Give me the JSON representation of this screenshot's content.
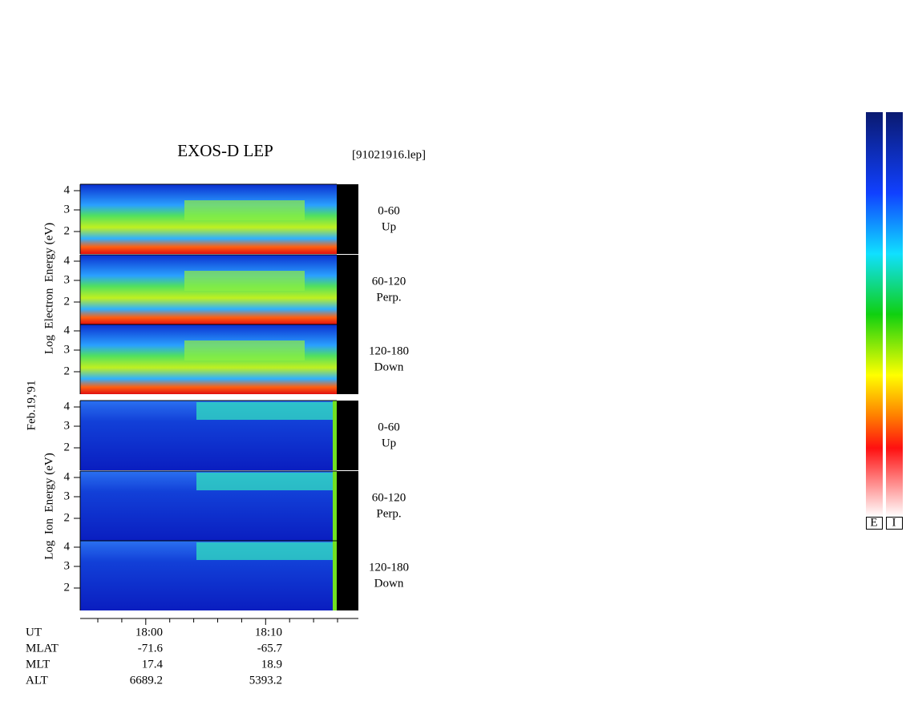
{
  "header": {
    "title": "EXOS-D LEP",
    "file": "[91021916.lep]"
  },
  "axis_labels": {
    "electron": "Log  Electron  Energy (eV)",
    "ion": "Log  Ion  Energy (eV)",
    "date": "Feb.19,'91"
  },
  "panels": [
    {
      "angle": "0-60",
      "direction": "Up",
      "yticks": [
        "4",
        "3",
        "2"
      ]
    },
    {
      "angle": "60-120",
      "direction": "Perp.",
      "yticks": [
        "4",
        "3",
        "2"
      ]
    },
    {
      "angle": "120-180",
      "direction": "Down",
      "yticks": [
        "4",
        "3",
        "2"
      ]
    },
    {
      "angle": "0-60",
      "direction": "Up",
      "yticks": [
        "4",
        "3",
        "2"
      ]
    },
    {
      "angle": "60-120",
      "direction": "Perp.",
      "yticks": [
        "4",
        "3",
        "2"
      ]
    },
    {
      "angle": "120-180",
      "direction": "Down",
      "yticks": [
        "4",
        "3",
        "2"
      ]
    }
  ],
  "footer": {
    "rows": [
      {
        "label": "UT",
        "values": [
          "18:00",
          "18:10"
        ]
      },
      {
        "label": "MLAT",
        "values": [
          "-71.6",
          "-65.7"
        ]
      },
      {
        "label": "MLT",
        "values": [
          "17.4",
          "18.9"
        ]
      },
      {
        "label": "ALT",
        "values": [
          "6689.2",
          "5393.2"
        ]
      }
    ]
  },
  "colorbar_labels": [
    "E",
    "I"
  ]
}
